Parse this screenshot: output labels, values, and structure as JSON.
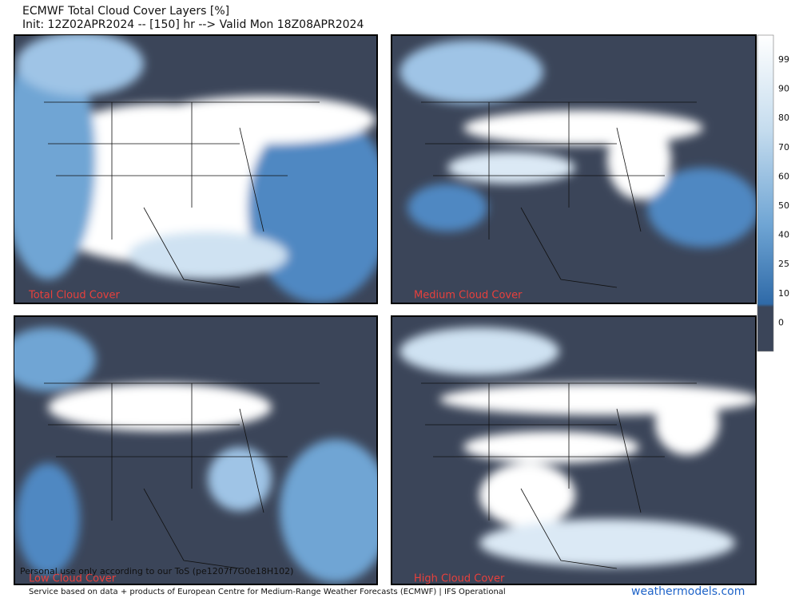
{
  "header": {
    "title": "ECMWF Total Cloud Cover Layers [%]",
    "subtitle": "Init: 12Z02APR2024 -- [150] hr --> Valid Mon 18Z08APR2024"
  },
  "panels": [
    {
      "label": "Total Cloud Cover"
    },
    {
      "label": "Medium Cloud Cover"
    },
    {
      "label": "Low Cloud Cover"
    },
    {
      "label": "High Cloud Cover"
    }
  ],
  "colorbar": {
    "labels": [
      "99",
      "90",
      "80",
      "70",
      "60",
      "50",
      "40",
      "25",
      "10",
      "0"
    ]
  },
  "footer": {
    "notice": "Personal use only according to our ToS (pe1207f7G0e18H102)",
    "credit": "Service based on data + products of European Centre for Medium-Range Weather Forecasts (ECMWF) | IFS Operational",
    "brand": "weathermodels.com"
  }
}
